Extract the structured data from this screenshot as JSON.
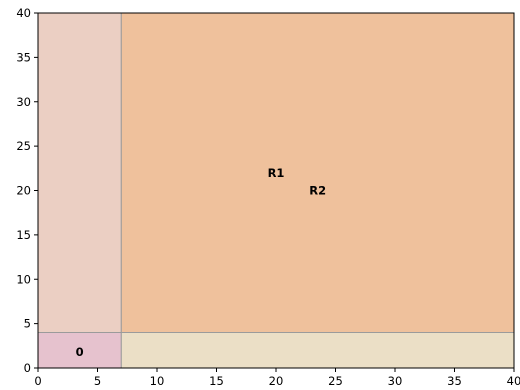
{
  "chart_data": {
    "type": "area",
    "title": "",
    "xlabel": "",
    "ylabel": "",
    "xlim": [
      0,
      40
    ],
    "ylim": [
      0,
      40
    ],
    "grid": false,
    "xticks": [
      "0",
      "5",
      "10",
      "15",
      "20",
      "25",
      "30",
      "35",
      "40"
    ],
    "yticks": [
      "0",
      "5",
      "10",
      "15",
      "20",
      "25",
      "30",
      "35",
      "40"
    ],
    "regions": [
      {
        "x0": 0,
        "x1": 7,
        "y0": 4,
        "y1": 40,
        "color": "#ebcfc3",
        "label": ""
      },
      {
        "x0": 0,
        "x1": 7,
        "y0": 0,
        "y1": 4,
        "color": "#e6c2ce",
        "label": "0",
        "label_x": 3.5,
        "label_y": 1.8
      },
      {
        "x0": 7,
        "x1": 40,
        "y0": 4,
        "y1": 40,
        "color": "#efc19c",
        "label": "R1",
        "label_x": 20,
        "label_y": 22
      },
      {
        "x0": 7,
        "x1": 40,
        "y0": 0,
        "y1": 4,
        "color": "#ebdfc6",
        "label": "",
        "label_x": 0,
        "label_y": 0
      },
      {
        "x0": 7,
        "x1": 40,
        "y0": 4,
        "y1": 40,
        "color": "none",
        "label": "R2",
        "label_x": 23.5,
        "label_y": 20
      }
    ]
  }
}
